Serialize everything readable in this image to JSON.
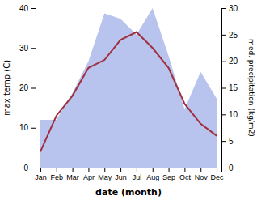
{
  "chart_data": {
    "type": "line",
    "categories": [
      "Jan",
      "Feb",
      "Mar",
      "Apr",
      "May",
      "Jun",
      "Jul",
      "Aug",
      "Sep",
      "Oct",
      "Nov",
      "Dec"
    ],
    "series": [
      {
        "type": "area",
        "axis": "y2",
        "color": "#b8c4ee",
        "values": [
          9,
          9,
          14,
          20,
          29,
          28,
          25,
          30,
          21,
          11,
          18,
          13
        ]
      },
      {
        "type": "line",
        "color": "#a03040",
        "values": [
          4,
          13,
          18,
          25,
          27,
          32,
          34,
          30,
          25,
          16,
          11,
          8
        ]
      }
    ],
    "xlabel": "date (month)",
    "ylabel": "max temp (C)",
    "y2label": "med. precipitation (kg/m2)",
    "ylim": [
      0,
      40
    ],
    "yticks": [
      0,
      10,
      20,
      30,
      40
    ],
    "y2lim": [
      0,
      30
    ],
    "y2ticks": [
      0,
      5,
      10,
      15,
      20,
      25,
      30
    ],
    "grid": false
  }
}
